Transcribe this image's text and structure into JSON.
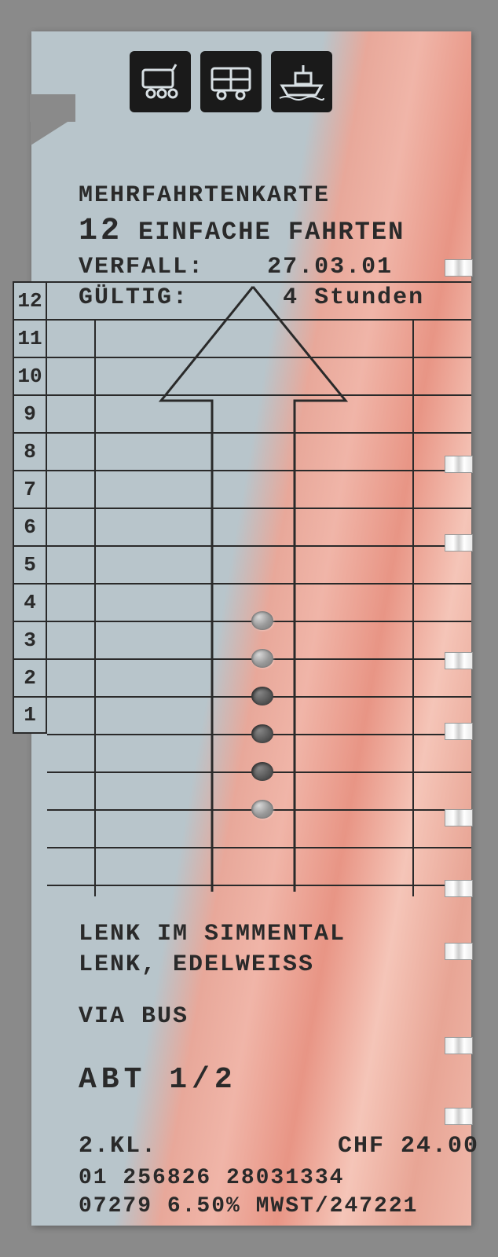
{
  "ticket": {
    "type_label": "MEHRFAHRTENKARTE",
    "trip_count": "12",
    "trip_label": "EINFACHE FAHRTEN",
    "expiry_label": "VERFALL:",
    "expiry_date": "27.03.01",
    "validity_label": "GÜLTIG:",
    "validity_duration": "4 Stunden",
    "row_numbers": [
      "12",
      "11",
      "10",
      "9",
      "8",
      "7",
      "6",
      "5",
      "4",
      "3",
      "2",
      "1"
    ],
    "route_from": "LENK IM SIMMENTAL",
    "route_to": "LENK, EDELWEISS",
    "via": "VIA BUS",
    "fare_type": "ABT  1/2",
    "class": "2.KL.",
    "price": "CHF 24.00",
    "serial_1": "01 256826 28031334",
    "serial_2": "07279 6.50% MWST/247221",
    "icons": [
      "train",
      "bus",
      "boat"
    ],
    "punched_rows": [
      5,
      4,
      3,
      2,
      1,
      0
    ],
    "colors": {
      "ticket_left": "#b8c5cb",
      "ticket_right": "#e8a595",
      "text": "#2a2a2a",
      "icon_bg": "#1a1a1a",
      "border": "#8a8a8a"
    },
    "security_strip_tops": [
      290,
      540,
      640,
      790,
      880,
      990,
      1080,
      1160,
      1280,
      1370
    ]
  }
}
